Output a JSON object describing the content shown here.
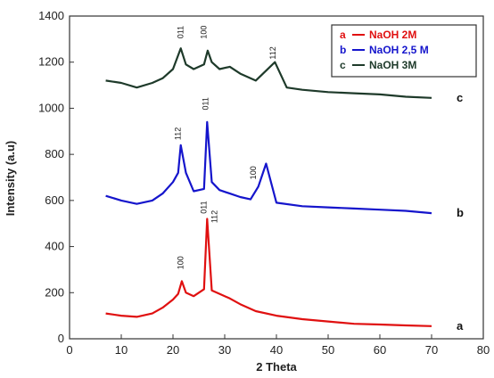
{
  "chart_data": {
    "type": "line",
    "title": "",
    "xlabel": "2 Theta",
    "ylabel": "Intensity (a.u)",
    "xlim": [
      0,
      80
    ],
    "ylim": [
      0,
      1400
    ],
    "xticks": [
      0,
      10,
      20,
      30,
      40,
      50,
      60,
      70,
      80
    ],
    "yticks": [
      0,
      200,
      400,
      600,
      800,
      1000,
      1200,
      1400
    ],
    "grid": false,
    "legend_position": "top-right",
    "series": [
      {
        "name": "NaOH 2M",
        "letter": "a",
        "legend_code": "a",
        "color": "#e01010",
        "x": [
          7,
          10,
          13,
          16,
          18,
          20,
          21,
          21.7,
          22.5,
          24,
          26,
          26.6,
          27.5,
          29,
          31,
          33,
          36,
          40,
          45,
          50,
          55,
          60,
          65,
          70
        ],
        "y": [
          110,
          100,
          95,
          110,
          135,
          170,
          195,
          250,
          200,
          185,
          215,
          520,
          210,
          195,
          175,
          150,
          120,
          100,
          85,
          75,
          65,
          62,
          58,
          55
        ]
      },
      {
        "name": "NaOH 2,5 M",
        "letter": "b",
        "legend_code": "b",
        "color": "#1515cc",
        "x": [
          7,
          10,
          13,
          16,
          18,
          20,
          21,
          21.5,
          22.5,
          24,
          26,
          26.6,
          27.5,
          29,
          31,
          33,
          35,
          36.5,
          38,
          40,
          45,
          50,
          55,
          60,
          65,
          70
        ],
        "y": [
          620,
          600,
          585,
          600,
          630,
          680,
          720,
          840,
          720,
          640,
          650,
          940,
          680,
          645,
          630,
          615,
          605,
          660,
          760,
          590,
          575,
          570,
          565,
          560,
          555,
          545
        ]
      },
      {
        "name": "NaOH 3M",
        "letter": "c",
        "legend_code": "c",
        "color": "#1e3a2a",
        "x": [
          7,
          10,
          13,
          16,
          18,
          20,
          21.5,
          22.5,
          24,
          26,
          26.7,
          27.5,
          29,
          31,
          33,
          36,
          39.7,
          42,
          45,
          50,
          55,
          60,
          65,
          70
        ],
        "y": [
          1120,
          1110,
          1090,
          1110,
          1130,
          1170,
          1260,
          1190,
          1170,
          1190,
          1250,
          1200,
          1170,
          1180,
          1150,
          1120,
          1200,
          1090,
          1080,
          1070,
          1065,
          1060,
          1050,
          1045
        ]
      }
    ],
    "peak_labels": [
      {
        "text": "011",
        "x": 22,
        "y": 1330
      },
      {
        "text": "100",
        "x": 26.5,
        "y": 1330
      },
      {
        "text": "112",
        "x": 39.8,
        "y": 1240
      },
      {
        "text": "112",
        "x": 21.5,
        "y": 890
      },
      {
        "text": "011",
        "x": 26.8,
        "y": 1020
      },
      {
        "text": "100",
        "x": 36,
        "y": 720
      },
      {
        "text": "100",
        "x": 22,
        "y": 330
      },
      {
        "text": "011",
        "x": 26.5,
        "y": 570
      },
      {
        "text": "112",
        "x": 28.5,
        "y": 530
      }
    ]
  }
}
